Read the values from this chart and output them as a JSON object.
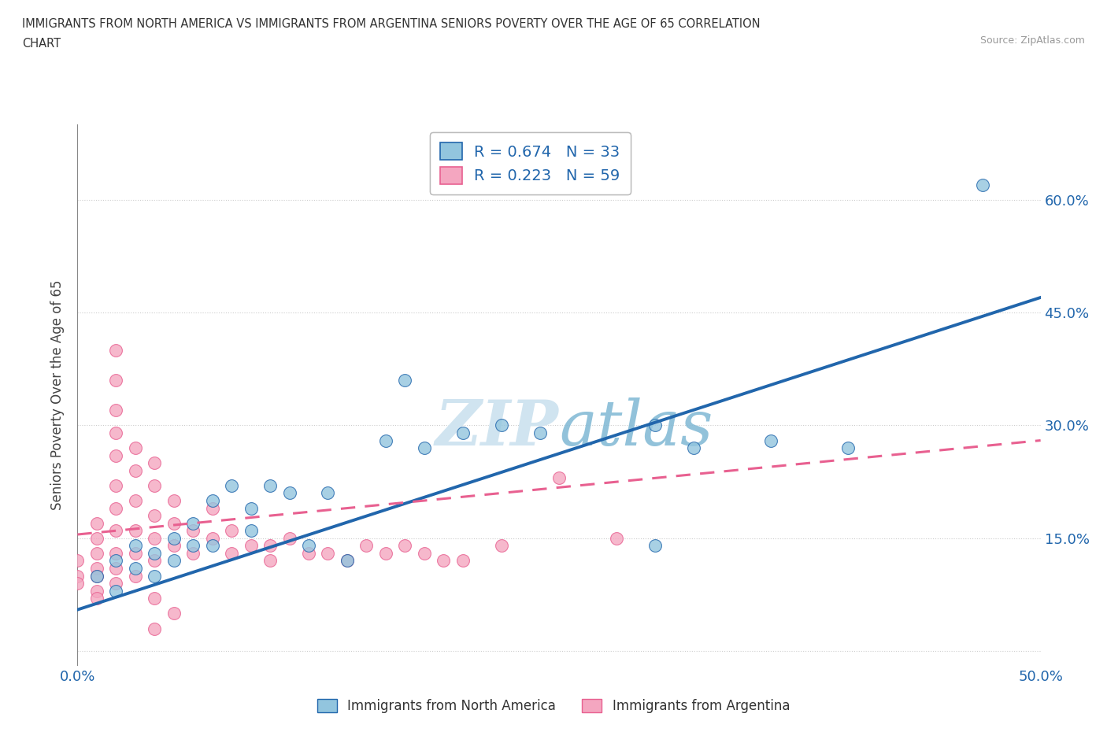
{
  "title_line1": "IMMIGRANTS FROM NORTH AMERICA VS IMMIGRANTS FROM ARGENTINA SENIORS POVERTY OVER THE AGE OF 65 CORRELATION",
  "title_line2": "CHART",
  "source": "Source: ZipAtlas.com",
  "ylabel": "Seniors Poverty Over the Age of 65",
  "xlim": [
    0.0,
    0.5
  ],
  "ylim": [
    -0.02,
    0.7
  ],
  "yticks": [
    0.0,
    0.15,
    0.3,
    0.45,
    0.6
  ],
  "ytick_labels": [
    "",
    "15.0%",
    "30.0%",
    "45.0%",
    "60.0%"
  ],
  "legend_r1": "R = 0.674   N = 33",
  "legend_r2": "R = 0.223   N = 59",
  "color_blue": "#92c5de",
  "color_pink": "#f4a6c0",
  "blue_line_color": "#2166ac",
  "pink_line_color": "#d6604d",
  "watermark_color": "#d0e4f0",
  "blue_scatter": [
    [
      0.01,
      0.1
    ],
    [
      0.02,
      0.08
    ],
    [
      0.02,
      0.12
    ],
    [
      0.03,
      0.11
    ],
    [
      0.03,
      0.14
    ],
    [
      0.04,
      0.1
    ],
    [
      0.04,
      0.13
    ],
    [
      0.05,
      0.12
    ],
    [
      0.05,
      0.15
    ],
    [
      0.06,
      0.14
    ],
    [
      0.06,
      0.17
    ],
    [
      0.07,
      0.2
    ],
    [
      0.07,
      0.14
    ],
    [
      0.08,
      0.22
    ],
    [
      0.09,
      0.16
    ],
    [
      0.09,
      0.19
    ],
    [
      0.1,
      0.22
    ],
    [
      0.11,
      0.21
    ],
    [
      0.12,
      0.14
    ],
    [
      0.13,
      0.21
    ],
    [
      0.14,
      0.12
    ],
    [
      0.16,
      0.28
    ],
    [
      0.17,
      0.36
    ],
    [
      0.18,
      0.27
    ],
    [
      0.2,
      0.29
    ],
    [
      0.22,
      0.3
    ],
    [
      0.24,
      0.29
    ],
    [
      0.3,
      0.3
    ],
    [
      0.32,
      0.27
    ],
    [
      0.36,
      0.28
    ],
    [
      0.4,
      0.27
    ],
    [
      0.47,
      0.62
    ],
    [
      0.3,
      0.14
    ]
  ],
  "pink_scatter": [
    [
      0.0,
      0.1
    ],
    [
      0.0,
      0.12
    ],
    [
      0.0,
      0.09
    ],
    [
      0.01,
      0.08
    ],
    [
      0.01,
      0.11
    ],
    [
      0.01,
      0.13
    ],
    [
      0.01,
      0.15
    ],
    [
      0.01,
      0.17
    ],
    [
      0.01,
      0.1
    ],
    [
      0.01,
      0.07
    ],
    [
      0.02,
      0.09
    ],
    [
      0.02,
      0.11
    ],
    [
      0.02,
      0.13
    ],
    [
      0.02,
      0.16
    ],
    [
      0.02,
      0.19
    ],
    [
      0.02,
      0.22
    ],
    [
      0.02,
      0.26
    ],
    [
      0.02,
      0.29
    ],
    [
      0.02,
      0.32
    ],
    [
      0.02,
      0.36
    ],
    [
      0.02,
      0.4
    ],
    [
      0.03,
      0.1
    ],
    [
      0.03,
      0.13
    ],
    [
      0.03,
      0.16
    ],
    [
      0.03,
      0.2
    ],
    [
      0.03,
      0.24
    ],
    [
      0.03,
      0.27
    ],
    [
      0.04,
      0.12
    ],
    [
      0.04,
      0.15
    ],
    [
      0.04,
      0.18
    ],
    [
      0.04,
      0.22
    ],
    [
      0.04,
      0.25
    ],
    [
      0.04,
      0.07
    ],
    [
      0.05,
      0.14
    ],
    [
      0.05,
      0.17
    ],
    [
      0.05,
      0.2
    ],
    [
      0.05,
      0.05
    ],
    [
      0.06,
      0.13
    ],
    [
      0.06,
      0.16
    ],
    [
      0.07,
      0.15
    ],
    [
      0.07,
      0.19
    ],
    [
      0.08,
      0.13
    ],
    [
      0.08,
      0.16
    ],
    [
      0.09,
      0.14
    ],
    [
      0.1,
      0.14
    ],
    [
      0.1,
      0.12
    ],
    [
      0.11,
      0.15
    ],
    [
      0.12,
      0.13
    ],
    [
      0.13,
      0.13
    ],
    [
      0.14,
      0.12
    ],
    [
      0.15,
      0.14
    ],
    [
      0.16,
      0.13
    ],
    [
      0.17,
      0.14
    ],
    [
      0.18,
      0.13
    ],
    [
      0.19,
      0.12
    ],
    [
      0.2,
      0.12
    ],
    [
      0.22,
      0.14
    ],
    [
      0.25,
      0.23
    ],
    [
      0.28,
      0.15
    ],
    [
      0.04,
      0.03
    ]
  ]
}
